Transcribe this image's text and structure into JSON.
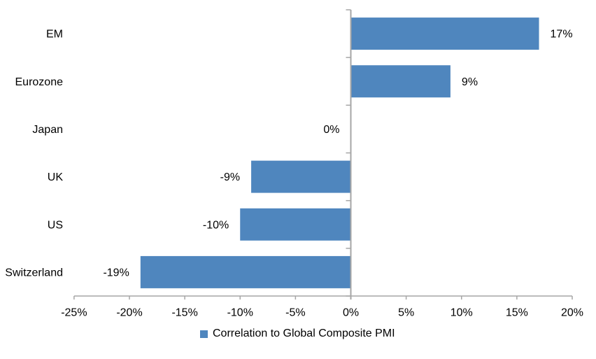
{
  "chart_data": {
    "type": "bar",
    "orientation": "horizontal",
    "categories": [
      "EM",
      "Eurozone",
      "Japan",
      "UK",
      "US",
      "Switzerland"
    ],
    "series": [
      {
        "name": "Correlation to Global Composite PMI",
        "values": [
          17,
          9,
          0,
          -9,
          -10,
          -19
        ],
        "color": "#4F86BE"
      }
    ],
    "value_labels": [
      "17%",
      "9%",
      "0%",
      "-9%",
      "-10%",
      "-19%"
    ],
    "x_tick_values": [
      -25,
      -20,
      -15,
      -10,
      -5,
      0,
      5,
      10,
      15,
      20
    ],
    "x_tick_labels": [
      "-25%",
      "-20%",
      "-15%",
      "-10%",
      "-5%",
      "0%",
      "5%",
      "10%",
      "15%",
      "20%"
    ],
    "xlim": [
      -25,
      20
    ],
    "grid": false,
    "legend_position": "bottom",
    "axis_color": "#A6A6A6",
    "text_color": "#000000",
    "background": "#FFFFFF",
    "title": "",
    "xlabel": "",
    "ylabel": ""
  }
}
